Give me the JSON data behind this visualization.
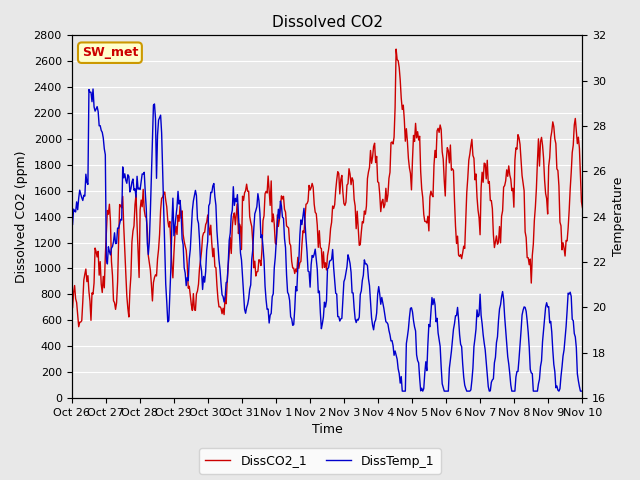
{
  "title": "Dissolved CO2",
  "xlabel": "Time",
  "ylabel_left": "Dissolved CO2 (ppm)",
  "ylabel_right": "Temperature",
  "legend_label_red": "DissCO2_1",
  "legend_label_blue": "DissTemp_1",
  "annotation_text": "SW_met",
  "annotation_bg": "#ffffcc",
  "annotation_border": "#cc9900",
  "ylim_left": [
    0,
    2800
  ],
  "ylim_right": [
    16,
    32
  ],
  "bg_color": "#e8e8e8",
  "plot_bg_color": "#e8e8e8",
  "grid_color": "#ffffff",
  "red_color": "#cc0000",
  "blue_color": "#0000cc",
  "title_fontsize": 11,
  "axis_fontsize": 9,
  "tick_fontsize": 8,
  "legend_fontsize": 9,
  "x_ticks": [
    0,
    1,
    2,
    3,
    4,
    5,
    6,
    7,
    8,
    9,
    10,
    11,
    12,
    13,
    14,
    15
  ],
  "x_tick_labels": [
    "Oct 26",
    "Oct 27",
    "Oct 28",
    "Oct 29",
    "Oct 30",
    "Oct 31",
    "Nov 1",
    "Nov 2",
    "Nov 3",
    "Nov 4",
    "Nov 5",
    "Nov 6",
    "Nov 7",
    "Nov 8",
    "Nov 9",
    "Nov 10"
  ]
}
